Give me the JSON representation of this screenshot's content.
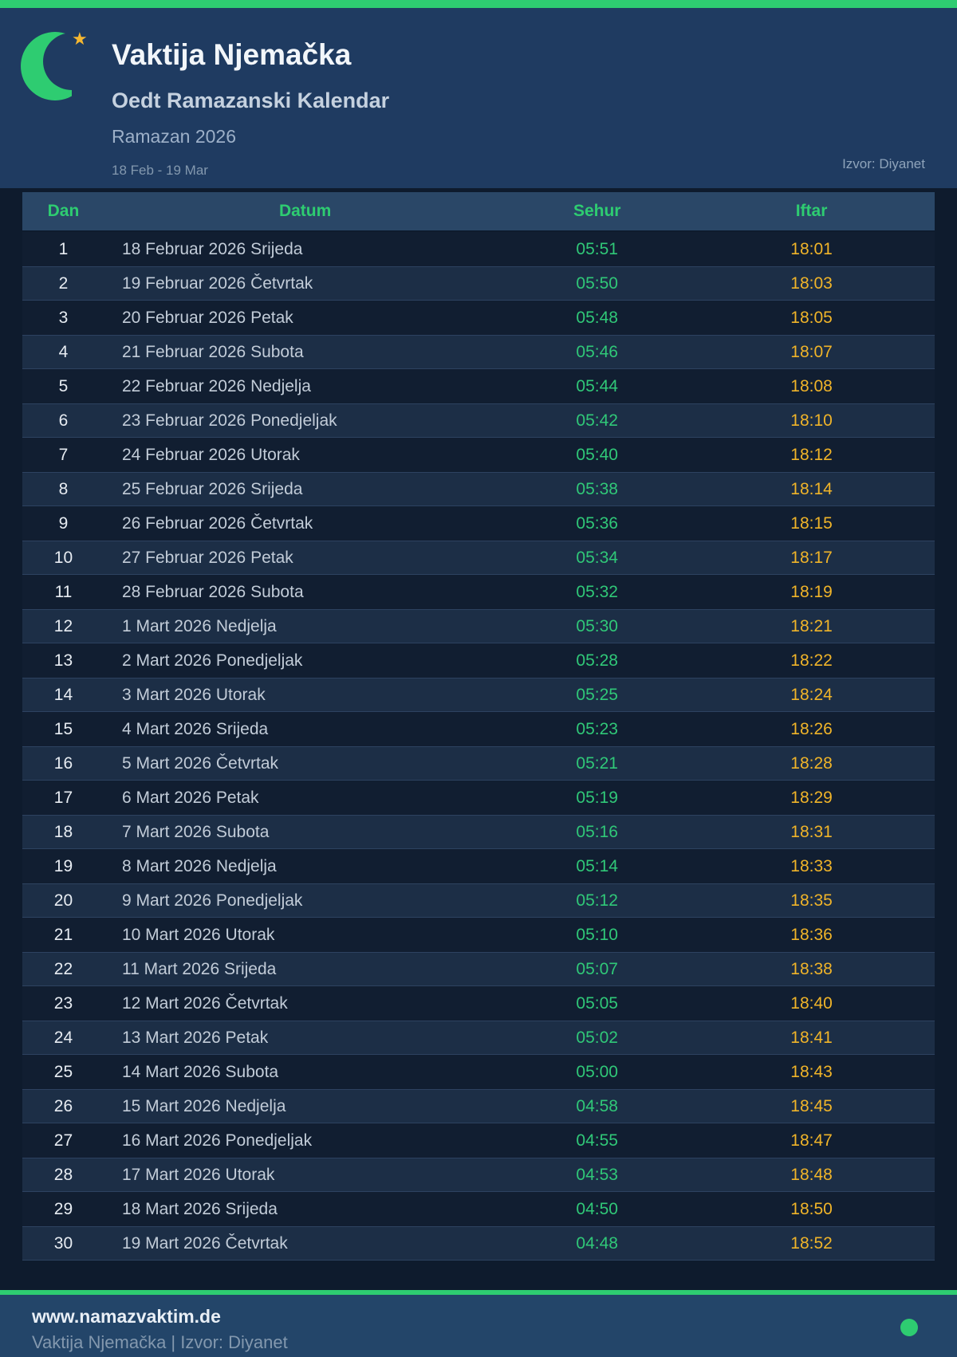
{
  "header": {
    "title": "Vaktija Njemačka",
    "subtitle": "Oedt Ramazanski Kalendar",
    "period": "Ramazan 2026",
    "date_range": "18 Feb - 19 Mar",
    "source": "Izvor: Diyanet"
  },
  "icons": {
    "logo": "crescent-moon",
    "logo_star": "star",
    "footer_dot": "green-status-dot"
  },
  "colors": {
    "accent_green": "#2ecc71",
    "sehur_green": "#30c878",
    "iftar_gold": "#f0b429",
    "header_bg": "#1f3b61",
    "page_bg": "#0e1b2d",
    "thead_bg": "#2a4767",
    "row_alt_bg": "#1c2e46",
    "footer_bg": "#234569",
    "star_gold": "#f5b731"
  },
  "table": {
    "columns": [
      "Dan",
      "Datum",
      "Sehur",
      "Iftar"
    ],
    "rows": [
      {
        "dan": "1",
        "datum": "18 Februar 2026 Srijeda",
        "sehur": "05:51",
        "iftar": "18:01"
      },
      {
        "dan": "2",
        "datum": "19 Februar 2026 Četvrtak",
        "sehur": "05:50",
        "iftar": "18:03"
      },
      {
        "dan": "3",
        "datum": "20 Februar 2026 Petak",
        "sehur": "05:48",
        "iftar": "18:05"
      },
      {
        "dan": "4",
        "datum": "21 Februar 2026 Subota",
        "sehur": "05:46",
        "iftar": "18:07"
      },
      {
        "dan": "5",
        "datum": "22 Februar 2026 Nedjelja",
        "sehur": "05:44",
        "iftar": "18:08"
      },
      {
        "dan": "6",
        "datum": "23 Februar 2026 Ponedjeljak",
        "sehur": "05:42",
        "iftar": "18:10"
      },
      {
        "dan": "7",
        "datum": "24 Februar 2026 Utorak",
        "sehur": "05:40",
        "iftar": "18:12"
      },
      {
        "dan": "8",
        "datum": "25 Februar 2026 Srijeda",
        "sehur": "05:38",
        "iftar": "18:14"
      },
      {
        "dan": "9",
        "datum": "26 Februar 2026 Četvrtak",
        "sehur": "05:36",
        "iftar": "18:15"
      },
      {
        "dan": "10",
        "datum": "27 Februar 2026 Petak",
        "sehur": "05:34",
        "iftar": "18:17"
      },
      {
        "dan": "11",
        "datum": "28 Februar 2026 Subota",
        "sehur": "05:32",
        "iftar": "18:19"
      },
      {
        "dan": "12",
        "datum": "1 Mart 2026 Nedjelja",
        "sehur": "05:30",
        "iftar": "18:21"
      },
      {
        "dan": "13",
        "datum": "2 Mart 2026 Ponedjeljak",
        "sehur": "05:28",
        "iftar": "18:22"
      },
      {
        "dan": "14",
        "datum": "3 Mart 2026 Utorak",
        "sehur": "05:25",
        "iftar": "18:24"
      },
      {
        "dan": "15",
        "datum": "4 Mart 2026 Srijeda",
        "sehur": "05:23",
        "iftar": "18:26"
      },
      {
        "dan": "16",
        "datum": "5 Mart 2026 Četvrtak",
        "sehur": "05:21",
        "iftar": "18:28"
      },
      {
        "dan": "17",
        "datum": "6 Mart 2026 Petak",
        "sehur": "05:19",
        "iftar": "18:29"
      },
      {
        "dan": "18",
        "datum": "7 Mart 2026 Subota",
        "sehur": "05:16",
        "iftar": "18:31"
      },
      {
        "dan": "19",
        "datum": "8 Mart 2026 Nedjelja",
        "sehur": "05:14",
        "iftar": "18:33"
      },
      {
        "dan": "20",
        "datum": "9 Mart 2026 Ponedjeljak",
        "sehur": "05:12",
        "iftar": "18:35"
      },
      {
        "dan": "21",
        "datum": "10 Mart 2026 Utorak",
        "sehur": "05:10",
        "iftar": "18:36"
      },
      {
        "dan": "22",
        "datum": "11 Mart 2026 Srijeda",
        "sehur": "05:07",
        "iftar": "18:38"
      },
      {
        "dan": "23",
        "datum": "12 Mart 2026 Četvrtak",
        "sehur": "05:05",
        "iftar": "18:40"
      },
      {
        "dan": "24",
        "datum": "13 Mart 2026 Petak",
        "sehur": "05:02",
        "iftar": "18:41"
      },
      {
        "dan": "25",
        "datum": "14 Mart 2026 Subota",
        "sehur": "05:00",
        "iftar": "18:43"
      },
      {
        "dan": "26",
        "datum": "15 Mart 2026 Nedjelja",
        "sehur": "04:58",
        "iftar": "18:45"
      },
      {
        "dan": "27",
        "datum": "16 Mart 2026 Ponedjeljak",
        "sehur": "04:55",
        "iftar": "18:47"
      },
      {
        "dan": "28",
        "datum": "17 Mart 2026 Utorak",
        "sehur": "04:53",
        "iftar": "18:48"
      },
      {
        "dan": "29",
        "datum": "18 Mart 2026 Srijeda",
        "sehur": "04:50",
        "iftar": "18:50"
      },
      {
        "dan": "30",
        "datum": "19 Mart 2026 Četvrtak",
        "sehur": "04:48",
        "iftar": "18:52"
      }
    ]
  },
  "footer": {
    "website": "www.namazvaktim.de",
    "tagline": "Vaktija Njemačka | Izvor: Diyanet"
  }
}
